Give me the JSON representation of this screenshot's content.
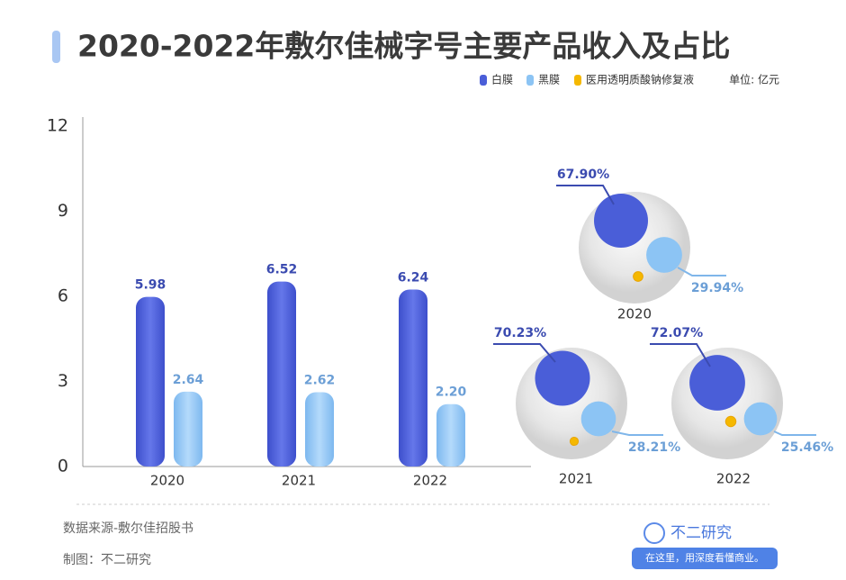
{
  "header": {
    "title": "2020-2022年敷尔佳械字号主要产品收入及占比",
    "unit": "单位: 亿元"
  },
  "chart_data": [
    {
      "type": "bar",
      "categories": [
        "2020",
        "2021",
        "2022"
      ],
      "series": [
        {
          "name": "白膜",
          "color": "#4a5ed8",
          "values": [
            5.98,
            6.52,
            6.24
          ]
        },
        {
          "name": "黑膜",
          "color": "#8cc4f4",
          "values": [
            2.64,
            2.62,
            2.2
          ],
          "value_labels": [
            "2.64",
            "2.62",
            "2.20"
          ]
        },
        {
          "name": "医用透明质酸钠修复液",
          "color": "#f5b800",
          "values": [
            null,
            null,
            null
          ]
        }
      ],
      "ylim": [
        0,
        12
      ],
      "yticks": [
        0,
        3,
        6,
        9,
        12
      ],
      "grid": false
    },
    {
      "type": "bubble",
      "categories": [
        "2020",
        "2021",
        "2022"
      ],
      "series": [
        {
          "color": "#4a5ed8",
          "values": [
            67.9,
            70.23,
            72.07
          ],
          "value_labels": [
            "67.90%",
            "70.23%",
            "72.07%"
          ]
        },
        {
          "color": "#8cc4f4",
          "values": [
            29.94,
            28.21,
            25.46
          ],
          "value_labels": [
            "29.94%",
            "28.21%",
            "25.46%"
          ]
        },
        {
          "color": "#f5b800",
          "values": [
            2.16,
            1.56,
            2.47
          ]
        }
      ]
    }
  ],
  "footer": {
    "source": "数据来源-敷尔佳招股书",
    "maker": "制图：不二研究",
    "logo": "不二研究",
    "slogan": "在这里，用深度看懂商业。"
  }
}
